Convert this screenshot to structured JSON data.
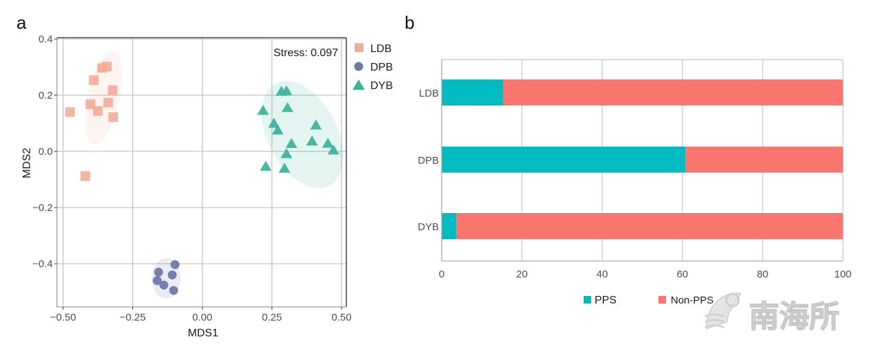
{
  "watermark": "南海所",
  "chart_data": [
    {
      "panel_label": "a",
      "type": "scatter",
      "title": "",
      "xlabel": "MDS1",
      "ylabel": "MDS2",
      "annotation": "Stress: 0.097",
      "xlim": [
        -0.53,
        0.52
      ],
      "ylim": [
        -0.555,
        0.41
      ],
      "xticks": [
        -0.5,
        -0.25,
        0.0,
        0.25,
        0.5
      ],
      "xtick_labels": [
        "−0.50",
        "−0.25",
        "0.00",
        "0.25",
        "0.50"
      ],
      "yticks": [
        0.4,
        0.2,
        0.0,
        -0.2,
        -0.4
      ],
      "ytick_labels": [
        "0.4",
        "0.2",
        "0.0",
        "−0.2",
        "−0.4"
      ],
      "grid": true,
      "legend_position": "right",
      "series": [
        {
          "name": "LDB",
          "marker": "square",
          "color": "#F4AC96",
          "ellipse": {
            "cx": -0.355,
            "cy": 0.19,
            "rx": 0.057,
            "ry": 0.17,
            "angle_deg": 12
          },
          "points": [
            [
              -0.475,
              0.14
            ],
            [
              -0.42,
              -0.088
            ],
            [
              -0.402,
              0.168
            ],
            [
              -0.39,
              0.254
            ],
            [
              -0.375,
              0.144
            ],
            [
              -0.36,
              0.297
            ],
            [
              -0.343,
              0.302
            ],
            [
              -0.338,
              0.174
            ],
            [
              -0.322,
              0.218
            ],
            [
              -0.32,
              0.122
            ]
          ]
        },
        {
          "name": "DPB",
          "marker": "circle",
          "color": "#6B7AA6",
          "ellipse": {
            "cx": -0.13,
            "cy": -0.452,
            "rx": 0.052,
            "ry": 0.072,
            "angle_deg": 0
          },
          "points": [
            [
              -0.098,
              -0.403
            ],
            [
              -0.157,
              -0.43
            ],
            [
              -0.108,
              -0.44
            ],
            [
              -0.162,
              -0.46
            ],
            [
              -0.138,
              -0.476
            ],
            [
              -0.103,
              -0.495
            ]
          ]
        },
        {
          "name": "DYB",
          "marker": "triangle",
          "color": "#3DB39E",
          "ellipse": {
            "cx": 0.36,
            "cy": 0.06,
            "rx": 0.125,
            "ry": 0.205,
            "angle_deg": -28
          },
          "points": [
            [
              0.218,
              0.146
            ],
            [
              0.284,
              0.214
            ],
            [
              0.302,
              0.216
            ],
            [
              0.306,
              0.156
            ],
            [
              0.257,
              0.1
            ],
            [
              0.271,
              0.076
            ],
            [
              0.32,
              0.028
            ],
            [
              0.302,
              -0.008
            ],
            [
              0.408,
              0.094
            ],
            [
              0.394,
              0.037
            ],
            [
              0.451,
              0.029
            ],
            [
              0.471,
              0.005
            ],
            [
              0.228,
              -0.053
            ],
            [
              0.295,
              -0.06
            ]
          ]
        }
      ]
    },
    {
      "panel_label": "b",
      "type": "bar",
      "orientation": "horizontal",
      "stacked": true,
      "title": "",
      "xlabel": "",
      "ylabel": "",
      "xlim": [
        0,
        100
      ],
      "xticks": [
        0,
        20,
        40,
        60,
        80,
        100
      ],
      "xtick_labels": [
        "0",
        "20",
        "40",
        "60",
        "80",
        "100"
      ],
      "grid": true,
      "legend_position": "bottom",
      "categories": [
        "LDB",
        "DPB",
        "DYB"
      ],
      "series": [
        {
          "name": "PPS",
          "color": "#00BCC2",
          "values": [
            15.3,
            60.8,
            3.7
          ]
        },
        {
          "name": "Non-PPS",
          "color": "#F8766D",
          "values": [
            84.7,
            39.2,
            96.3
          ]
        }
      ]
    }
  ]
}
